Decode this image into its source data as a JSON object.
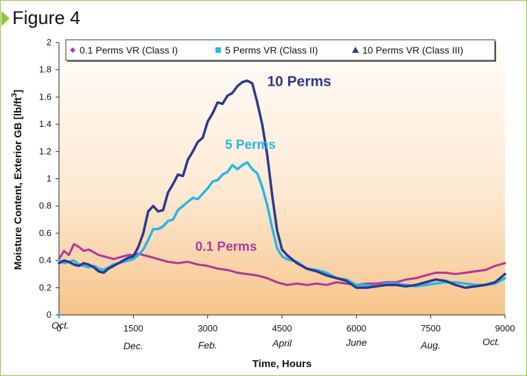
{
  "figure_label": "Figure 4",
  "chart_data": {
    "type": "line",
    "title": "",
    "xlabel": "Time, Hours",
    "ylabel": "Moisture Content, Exterior GB [lb/ft",
    "ylabel_superscript": "3",
    "ylabel_close": "]",
    "xlim": [
      0,
      9000
    ],
    "ylim": [
      0,
      2
    ],
    "x_ticks": [
      0,
      1500,
      3000,
      4500,
      6000,
      7500,
      9000
    ],
    "y_ticks": [
      "0",
      "0.2",
      "0.4",
      "0.6",
      "0.8",
      "1",
      "1.2",
      "1.4",
      "1.6",
      "1.8",
      "2"
    ],
    "month_labels": [
      {
        "x": 0,
        "text": "Oct."
      },
      {
        "x": 1500,
        "text": "Dec."
      },
      {
        "x": 3000,
        "text": "Feb."
      },
      {
        "x": 4500,
        "text": "April"
      },
      {
        "x": 6000,
        "text": "June"
      },
      {
        "x": 7500,
        "text": "Aug."
      },
      {
        "x": 9000,
        "text": "Oct."
      }
    ],
    "legend_position": "top",
    "background": "gradient white to light orange",
    "series": [
      {
        "name": "0.1 Perms VR (Class I)",
        "marker": "diamond",
        "color": "#b03a9c",
        "x": [
          0,
          100,
          200,
          300,
          400,
          500,
          600,
          700,
          800,
          900,
          1000,
          1100,
          1200,
          1300,
          1400,
          1500,
          1600,
          1700,
          1800,
          1900,
          2000,
          2200,
          2400,
          2600,
          2800,
          3000,
          3200,
          3400,
          3600,
          3800,
          4000,
          4200,
          4400,
          4600,
          4800,
          5000,
          5200,
          5400,
          5600,
          5800,
          6000,
          6200,
          6400,
          6600,
          6800,
          7000,
          7200,
          7400,
          7600,
          7800,
          8000,
          8200,
          8400,
          8600,
          8800,
          9000
        ],
        "y": [
          0.41,
          0.47,
          0.44,
          0.52,
          0.5,
          0.47,
          0.48,
          0.46,
          0.44,
          0.43,
          0.42,
          0.41,
          0.42,
          0.43,
          0.44,
          0.44,
          0.45,
          0.44,
          0.43,
          0.42,
          0.41,
          0.39,
          0.38,
          0.39,
          0.37,
          0.36,
          0.34,
          0.33,
          0.31,
          0.3,
          0.29,
          0.27,
          0.24,
          0.22,
          0.23,
          0.22,
          0.23,
          0.22,
          0.24,
          0.23,
          0.22,
          0.23,
          0.23,
          0.24,
          0.24,
          0.26,
          0.27,
          0.29,
          0.31,
          0.31,
          0.3,
          0.31,
          0.32,
          0.33,
          0.36,
          0.38
        ]
      },
      {
        "name": "5 Perms VR (Class II)",
        "marker": "square",
        "color": "#29b6e6",
        "x": [
          0,
          100,
          200,
          300,
          400,
          500,
          600,
          700,
          800,
          900,
          1000,
          1100,
          1200,
          1300,
          1400,
          1500,
          1600,
          1700,
          1800,
          1900,
          2000,
          2100,
          2200,
          2300,
          2400,
          2500,
          2600,
          2700,
          2800,
          2900,
          3000,
          3100,
          3200,
          3300,
          3400,
          3500,
          3600,
          3700,
          3800,
          3900,
          4000,
          4100,
          4200,
          4300,
          4400,
          4500,
          4600,
          4800,
          5000,
          5200,
          5400,
          5600,
          5800,
          6000,
          6200,
          6400,
          6600,
          6800,
          7000,
          7200,
          7400,
          7600,
          7800,
          8000,
          8200,
          8400,
          8600,
          8800,
          9000
        ],
        "y": [
          0.4,
          0.38,
          0.39,
          0.4,
          0.37,
          0.36,
          0.35,
          0.36,
          0.34,
          0.33,
          0.35,
          0.37,
          0.38,
          0.39,
          0.4,
          0.41,
          0.44,
          0.48,
          0.55,
          0.63,
          0.63,
          0.65,
          0.69,
          0.7,
          0.77,
          0.8,
          0.83,
          0.86,
          0.85,
          0.89,
          0.93,
          0.98,
          0.99,
          1.03,
          1.05,
          1.1,
          1.07,
          1.1,
          1.12,
          1.07,
          1.04,
          0.94,
          0.81,
          0.64,
          0.49,
          0.43,
          0.41,
          0.39,
          0.34,
          0.33,
          0.31,
          0.27,
          0.26,
          0.22,
          0.22,
          0.21,
          0.23,
          0.23,
          0.22,
          0.21,
          0.22,
          0.23,
          0.24,
          0.24,
          0.23,
          0.22,
          0.22,
          0.23,
          0.27
        ]
      },
      {
        "name": "10 Perms VR (Class III)",
        "marker": "triangle",
        "color": "#2b3990",
        "x": [
          0,
          100,
          200,
          300,
          400,
          500,
          600,
          700,
          800,
          900,
          1000,
          1100,
          1200,
          1300,
          1400,
          1500,
          1600,
          1700,
          1800,
          1900,
          2000,
          2100,
          2200,
          2300,
          2400,
          2500,
          2600,
          2700,
          2800,
          2900,
          3000,
          3100,
          3200,
          3300,
          3400,
          3500,
          3600,
          3700,
          3800,
          3900,
          4000,
          4100,
          4200,
          4300,
          4400,
          4500,
          4600,
          4800,
          5000,
          5200,
          5400,
          5600,
          5800,
          6000,
          6200,
          6400,
          6600,
          6800,
          7000,
          7200,
          7400,
          7600,
          7800,
          8000,
          8200,
          8400,
          8600,
          8800,
          9000
        ],
        "y": [
          0.38,
          0.4,
          0.39,
          0.37,
          0.36,
          0.38,
          0.37,
          0.35,
          0.32,
          0.31,
          0.34,
          0.36,
          0.38,
          0.4,
          0.42,
          0.43,
          0.5,
          0.6,
          0.76,
          0.8,
          0.76,
          0.77,
          0.9,
          0.96,
          1.03,
          1.02,
          1.14,
          1.2,
          1.27,
          1.3,
          1.42,
          1.48,
          1.56,
          1.55,
          1.61,
          1.63,
          1.68,
          1.71,
          1.72,
          1.7,
          1.56,
          1.4,
          1.18,
          0.88,
          0.62,
          0.48,
          0.44,
          0.38,
          0.34,
          0.32,
          0.29,
          0.27,
          0.25,
          0.2,
          0.2,
          0.21,
          0.22,
          0.22,
          0.21,
          0.22,
          0.24,
          0.26,
          0.25,
          0.22,
          0.2,
          0.21,
          0.22,
          0.24,
          0.3
        ]
      }
    ],
    "annotations": [
      {
        "text": "10 Perms",
        "x": 4200,
        "y": 1.68,
        "color": "#2b3990"
      },
      {
        "text": "5 Perms",
        "x": 3350,
        "y": 1.22,
        "color": "#29b6e6"
      },
      {
        "text": "0.1 Perms",
        "x": 2750,
        "y": 0.47,
        "color": "#b03a9c"
      }
    ]
  }
}
